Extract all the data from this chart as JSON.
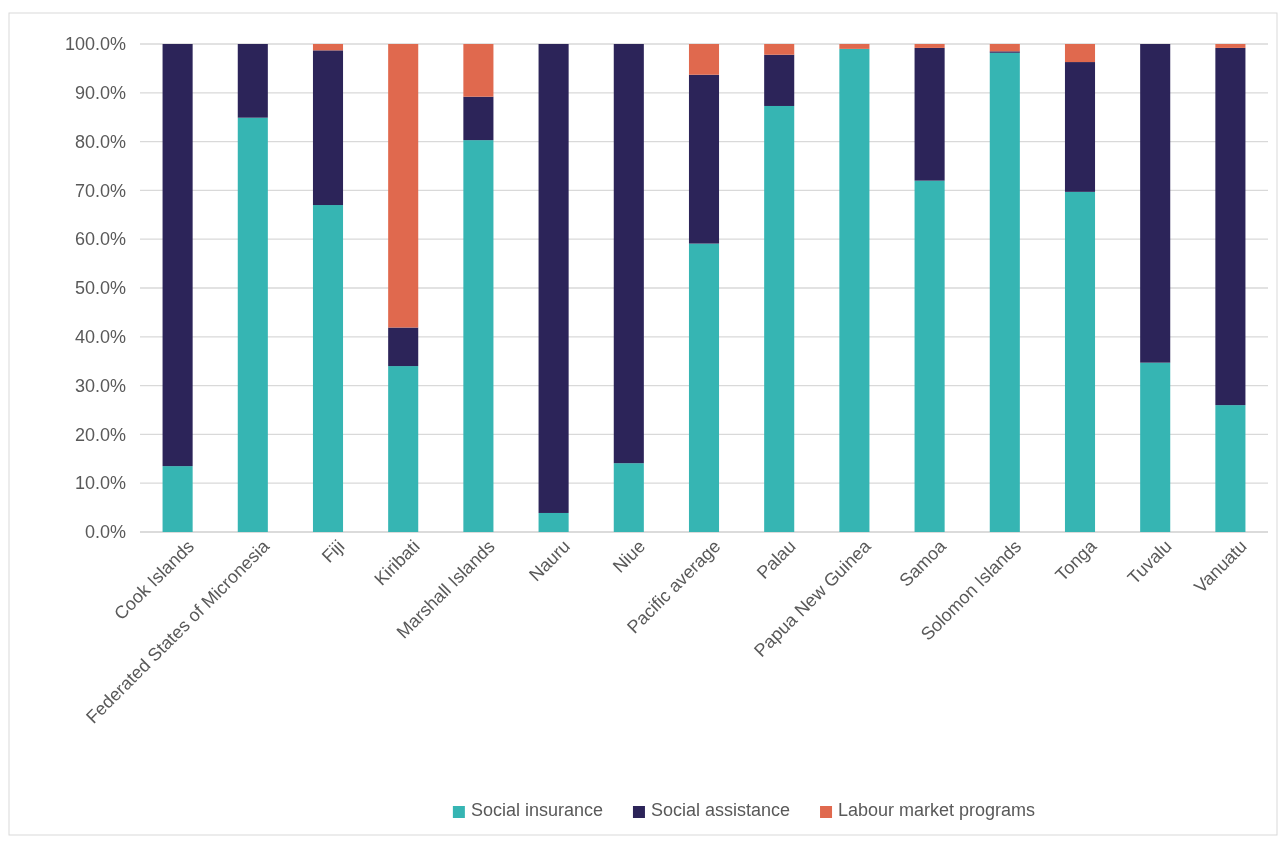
{
  "chart_data": {
    "type": "bar",
    "stacked": true,
    "categories": [
      "Cook Islands",
      "Federated States of Micronesia",
      "Fiji",
      "Kiribati",
      "Marshall Islands",
      "Nauru",
      "Niue",
      "Pacific average",
      "Palau",
      "Papua New Guinea",
      "Samoa",
      "Solomon Islands",
      "Tonga",
      "Tuvalu",
      "Vanuatu"
    ],
    "series": [
      {
        "name": "Social insurance",
        "color": "#36b5b3",
        "values": [
          13.5,
          84.9,
          67.0,
          34.0,
          80.3,
          3.9,
          14.1,
          59.1,
          87.3,
          99.0,
          72.0,
          98.2,
          69.7,
          34.7,
          26.0
        ]
      },
      {
        "name": "Social assistance",
        "color": "#2c2459",
        "values": [
          86.5,
          15.1,
          31.7,
          7.9,
          8.9,
          96.1,
          85.9,
          34.6,
          10.5,
          0,
          27.2,
          0.3,
          26.6,
          65.3,
          73.2
        ]
      },
      {
        "name": "Labour market programs",
        "color": "#e0694e",
        "values": [
          0,
          0,
          1.3,
          58.1,
          10.8,
          0,
          0,
          6.3,
          2.2,
          1.0,
          0.8,
          1.5,
          3.7,
          0,
          0.8
        ]
      }
    ],
    "ylim": [
      0,
      100
    ],
    "yticks": [
      {
        "value": 0,
        "label": "0.0%"
      },
      {
        "value": 10,
        "label": "10.0%"
      },
      {
        "value": 20,
        "label": "20.0%"
      },
      {
        "value": 30,
        "label": "30.0%"
      },
      {
        "value": 40,
        "label": "40.0%"
      },
      {
        "value": 50,
        "label": "50.0%"
      },
      {
        "value": 60,
        "label": "60.0%"
      },
      {
        "value": 70,
        "label": "70.0%"
      },
      {
        "value": 80,
        "label": "80.0%"
      },
      {
        "value": 90,
        "label": "90.0%"
      },
      {
        "value": 100,
        "label": "100.0%"
      }
    ],
    "grid": "y",
    "legend": "bottom"
  }
}
